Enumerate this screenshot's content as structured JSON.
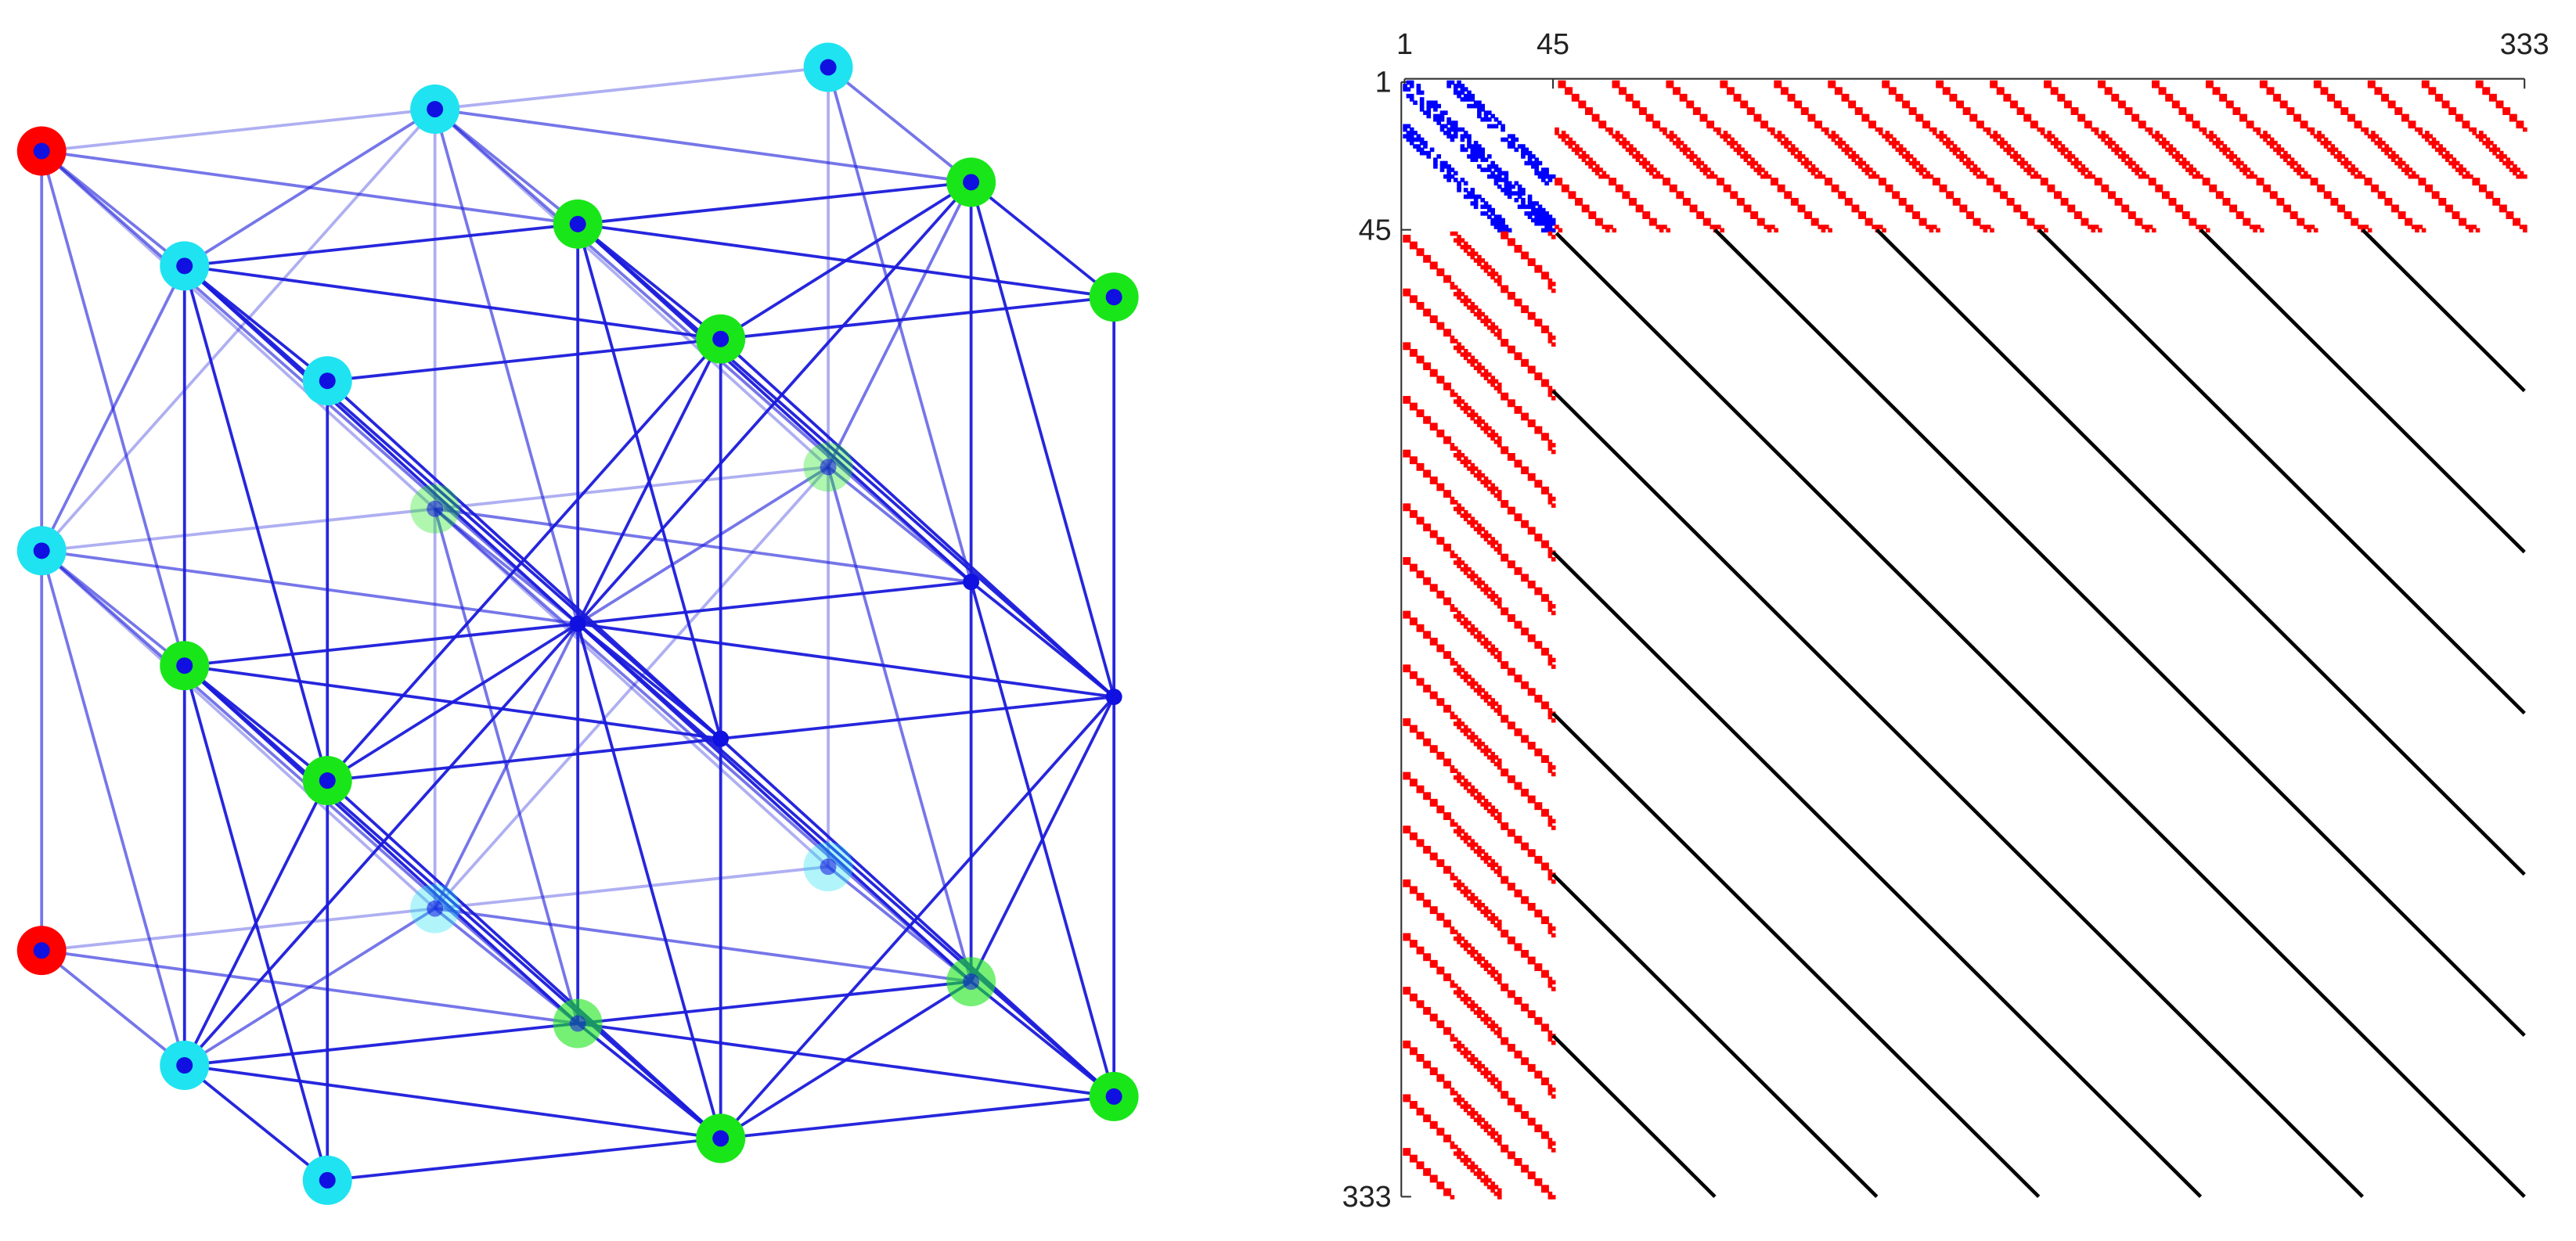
{
  "matrix": {
    "x_ticks": [
      1,
      45,
      333
    ],
    "y_ticks": [
      1,
      45,
      333
    ]
  }
}
